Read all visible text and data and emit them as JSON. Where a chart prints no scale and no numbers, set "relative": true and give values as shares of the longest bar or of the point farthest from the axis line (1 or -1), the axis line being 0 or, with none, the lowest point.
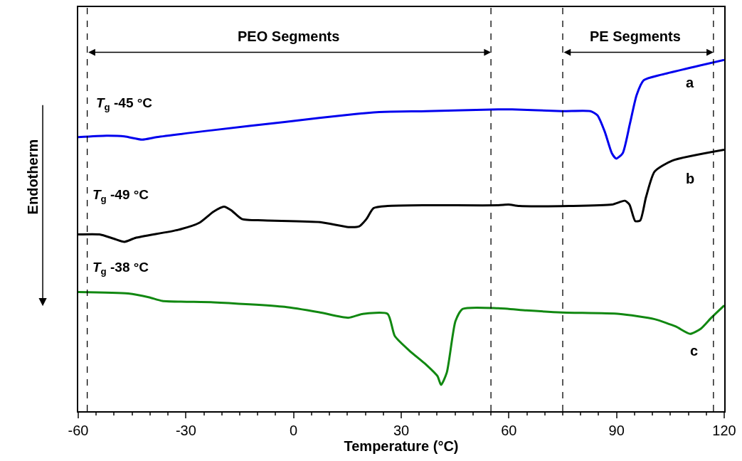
{
  "chart_data": {
    "type": "line",
    "relative": true,
    "xlabel": "Temperature (°C)",
    "xlim": [
      -60,
      120
    ],
    "xticks": [
      -60,
      -30,
      0,
      30,
      60,
      90,
      120
    ],
    "tick_labels": "x",
    "legend": false,
    "marker": "none",
    "line_style": "solid",
    "series": [
      {
        "color": "#0000ee",
        "x": [
          -60,
          -52.1,
          -47.1,
          -42.2,
          -38.2,
          -22.3,
          -2.5,
          17.3,
          25.3,
          37.1,
          57.0,
          60.9,
          74.8,
          82.7,
          84.7,
          86.7,
          88.7,
          89.9,
          91.7,
          93.7,
          95.6,
          97.6,
          102.6,
          120
        ],
        "values": [
          0.78,
          0.784,
          0.782,
          0.773,
          0.78,
          0.8,
          0.823,
          0.846,
          0.852,
          0.854,
          0.859,
          0.859,
          0.854,
          0.854,
          0.842,
          0.796,
          0.734,
          0.719,
          0.734,
          0.817,
          0.9,
          0.942,
          0.958,
          1
        ]
      },
      {
        "color": "#000000",
        "x": [
          -60,
          -54.1,
          -50.1,
          -47.1,
          -44.1,
          -32.2,
          -26.3,
          -22.3,
          -19.4,
          -17.4,
          -14.4,
          -8.5,
          7.4,
          15.3,
          18.3,
          20.3,
          22.3,
          26.2,
          37.1,
          57.0,
          59.9,
          62.9,
          76.8,
          88.7,
          92.3,
          93.6,
          95.2,
          96.6,
          98.2,
          100.6,
          105.5,
          120
        ],
        "values": [
          0.503,
          0.503,
          0.491,
          0.482,
          0.493,
          0.516,
          0.536,
          0.568,
          0.582,
          0.572,
          0.547,
          0.543,
          0.538,
          0.524,
          0.526,
          0.547,
          0.578,
          0.584,
          0.586,
          0.586,
          0.588,
          0.584,
          0.584,
          0.588,
          0.599,
          0.588,
          0.541,
          0.543,
          0.609,
          0.682,
          0.713,
          0.744
        ]
      },
      {
        "color": "#118811",
        "x": [
          -60,
          -46.1,
          -40.2,
          -36.6,
          -22.3,
          -2.5,
          7.4,
          15.3,
          19.3,
          26.2,
          28.2,
          32.2,
          37.1,
          40.1,
          41.1,
          42.7,
          45.1,
          47.1,
          57.0,
          64.9,
          74.8,
          90.7,
          100.6,
          106.5,
          110.5,
          113.5,
          116.4,
          120
        ],
        "values": [
          0.339,
          0.335,
          0.324,
          0.314,
          0.31,
          0.297,
          0.281,
          0.266,
          0.277,
          0.277,
          0.214,
          0.173,
          0.131,
          0.1,
          0.075,
          0.11,
          0.256,
          0.291,
          0.293,
          0.287,
          0.281,
          0.277,
          0.262,
          0.241,
          0.22,
          0.235,
          0.266,
          0.301
        ]
      }
    ],
    "ref_lines": [
      {
        "axis": "x",
        "value": -57.5,
        "color": "#000000",
        "line_style": "dashed"
      },
      {
        "axis": "x",
        "value": 55,
        "color": "#000000",
        "line_style": "dashed"
      },
      {
        "axis": "x",
        "value": 75,
        "color": "#000000",
        "line_style": "dashed"
      },
      {
        "axis": "x",
        "value": 117,
        "color": "#000000",
        "line_style": "dashed"
      }
    ],
    "annotations": [
      "PEO Segments",
      "PE Segments",
      "T$_{g}$ -45 °C",
      "T$_{g}$ -49 °C",
      "T$_{g}$ -38 °C",
      "a",
      "b",
      "c",
      "Endotherm"
    ]
  }
}
